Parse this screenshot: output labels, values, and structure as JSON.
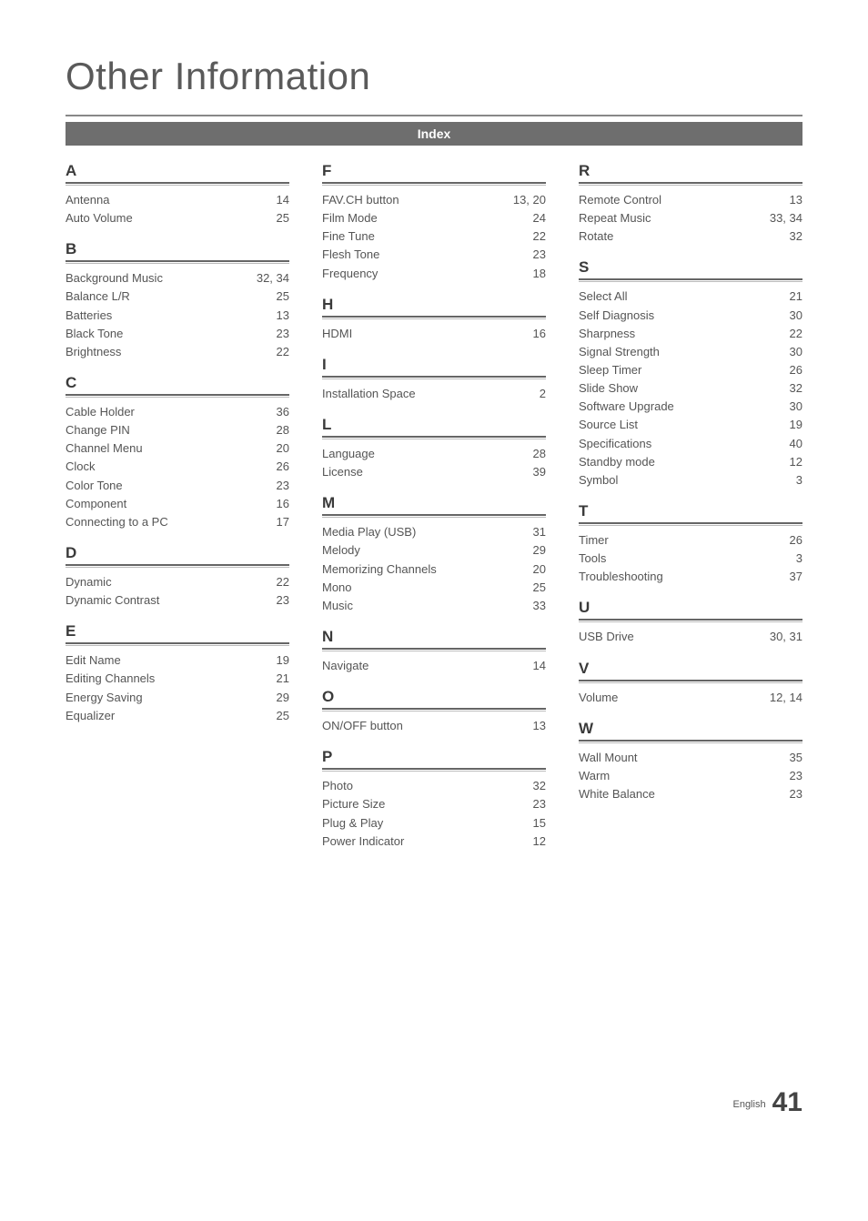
{
  "title": "Other Information",
  "banner": "Index",
  "colors": {
    "banner_bg": "#6e6e6e",
    "banner_text": "#ffffff",
    "text": "#4a4a4a",
    "title_text": "#5a5a5a",
    "rule_dark": "#666666",
    "rule_light": "#bbbbbb"
  },
  "typography": {
    "title_fontsize": 42,
    "title_weight": 300,
    "letter_fontsize": 17,
    "entry_fontsize": 13,
    "footer_label_fontsize": 11,
    "footer_num_fontsize": 30
  },
  "columns": [
    {
      "sections": [
        {
          "letter": "A",
          "entries": [
            {
              "term": "Antenna",
              "pages": "14"
            },
            {
              "term": "Auto Volume",
              "pages": "25"
            }
          ]
        },
        {
          "letter": "B",
          "entries": [
            {
              "term": "Background Music",
              "pages": "32, 34"
            },
            {
              "term": "Balance L/R",
              "pages": "25"
            },
            {
              "term": "Batteries",
              "pages": "13"
            },
            {
              "term": "Black Tone",
              "pages": "23"
            },
            {
              "term": "Brightness",
              "pages": "22"
            }
          ]
        },
        {
          "letter": "C",
          "entries": [
            {
              "term": "Cable Holder",
              "pages": "36"
            },
            {
              "term": "Change PIN",
              "pages": "28"
            },
            {
              "term": "Channel Menu",
              "pages": "20"
            },
            {
              "term": "Clock",
              "pages": "26"
            },
            {
              "term": "Color Tone",
              "pages": "23"
            },
            {
              "term": "Component",
              "pages": "16"
            },
            {
              "term": "Connecting to a PC",
              "pages": "17"
            }
          ]
        },
        {
          "letter": "D",
          "entries": [
            {
              "term": "Dynamic",
              "pages": "22"
            },
            {
              "term": "Dynamic Contrast",
              "pages": "23"
            }
          ]
        },
        {
          "letter": "E",
          "entries": [
            {
              "term": "Edit Name",
              "pages": "19"
            },
            {
              "term": "Editing Channels",
              "pages": "21"
            },
            {
              "term": "Energy Saving",
              "pages": "29"
            },
            {
              "term": "Equalizer",
              "pages": "25"
            }
          ]
        }
      ]
    },
    {
      "sections": [
        {
          "letter": "F",
          "entries": [
            {
              "term": "FAV.CH button",
              "pages": "13, 20"
            },
            {
              "term": "Film Mode",
              "pages": "24"
            },
            {
              "term": "Fine Tune",
              "pages": "22"
            },
            {
              "term": "Flesh Tone",
              "pages": "23"
            },
            {
              "term": "Frequency",
              "pages": "18"
            }
          ]
        },
        {
          "letter": "H",
          "entries": [
            {
              "term": "HDMI",
              "pages": "16"
            }
          ]
        },
        {
          "letter": "I",
          "entries": [
            {
              "term": "Installation Space",
              "pages": "2"
            }
          ]
        },
        {
          "letter": "L",
          "entries": [
            {
              "term": "Language",
              "pages": "28"
            },
            {
              "term": "License",
              "pages": "39"
            }
          ]
        },
        {
          "letter": "M",
          "entries": [
            {
              "term": "Media Play (USB)",
              "pages": "31"
            },
            {
              "term": "Melody",
              "pages": "29"
            },
            {
              "term": "Memorizing Channels",
              "pages": "20"
            },
            {
              "term": "Mono",
              "pages": "25"
            },
            {
              "term": "Music",
              "pages": "33"
            }
          ]
        },
        {
          "letter": "N",
          "entries": [
            {
              "term": "Navigate",
              "pages": "14"
            }
          ]
        },
        {
          "letter": "O",
          "entries": [
            {
              "term": "ON/OFF button",
              "pages": "13"
            }
          ]
        },
        {
          "letter": "P",
          "entries": [
            {
              "term": "Photo",
              "pages": "32"
            },
            {
              "term": "Picture Size",
              "pages": "23"
            },
            {
              "term": "Plug & Play",
              "pages": "15"
            },
            {
              "term": "Power Indicator",
              "pages": "12"
            }
          ]
        }
      ]
    },
    {
      "sections": [
        {
          "letter": "R",
          "entries": [
            {
              "term": "Remote Control",
              "pages": "13"
            },
            {
              "term": "Repeat Music",
              "pages": "33, 34"
            },
            {
              "term": "Rotate",
              "pages": "32"
            }
          ]
        },
        {
          "letter": "S",
          "entries": [
            {
              "term": "Select All",
              "pages": "21"
            },
            {
              "term": "Self Diagnosis",
              "pages": "30"
            },
            {
              "term": "Sharpness",
              "pages": "22"
            },
            {
              "term": "Signal Strength",
              "pages": "30"
            },
            {
              "term": "Sleep Timer",
              "pages": "26"
            },
            {
              "term": "Slide Show",
              "pages": "32"
            },
            {
              "term": "Software Upgrade",
              "pages": "30"
            },
            {
              "term": "Source List",
              "pages": "19"
            },
            {
              "term": "Specifications",
              "pages": "40"
            },
            {
              "term": "Standby mode",
              "pages": "12"
            },
            {
              "term": "Symbol",
              "pages": "3"
            }
          ]
        },
        {
          "letter": "T",
          "entries": [
            {
              "term": "Timer",
              "pages": "26"
            },
            {
              "term": "Tools",
              "pages": "3"
            },
            {
              "term": "Troubleshooting",
              "pages": "37"
            }
          ]
        },
        {
          "letter": "U",
          "entries": [
            {
              "term": "USB Drive",
              "pages": "30, 31"
            }
          ]
        },
        {
          "letter": "V",
          "entries": [
            {
              "term": "Volume",
              "pages": "12, 14"
            }
          ]
        },
        {
          "letter": "W",
          "entries": [
            {
              "term": "Wall Mount",
              "pages": "35"
            },
            {
              "term": "Warm",
              "pages": "23"
            },
            {
              "term": "White Balance",
              "pages": "23"
            }
          ]
        }
      ]
    }
  ],
  "footer": {
    "language": "English",
    "page_number": "41"
  }
}
